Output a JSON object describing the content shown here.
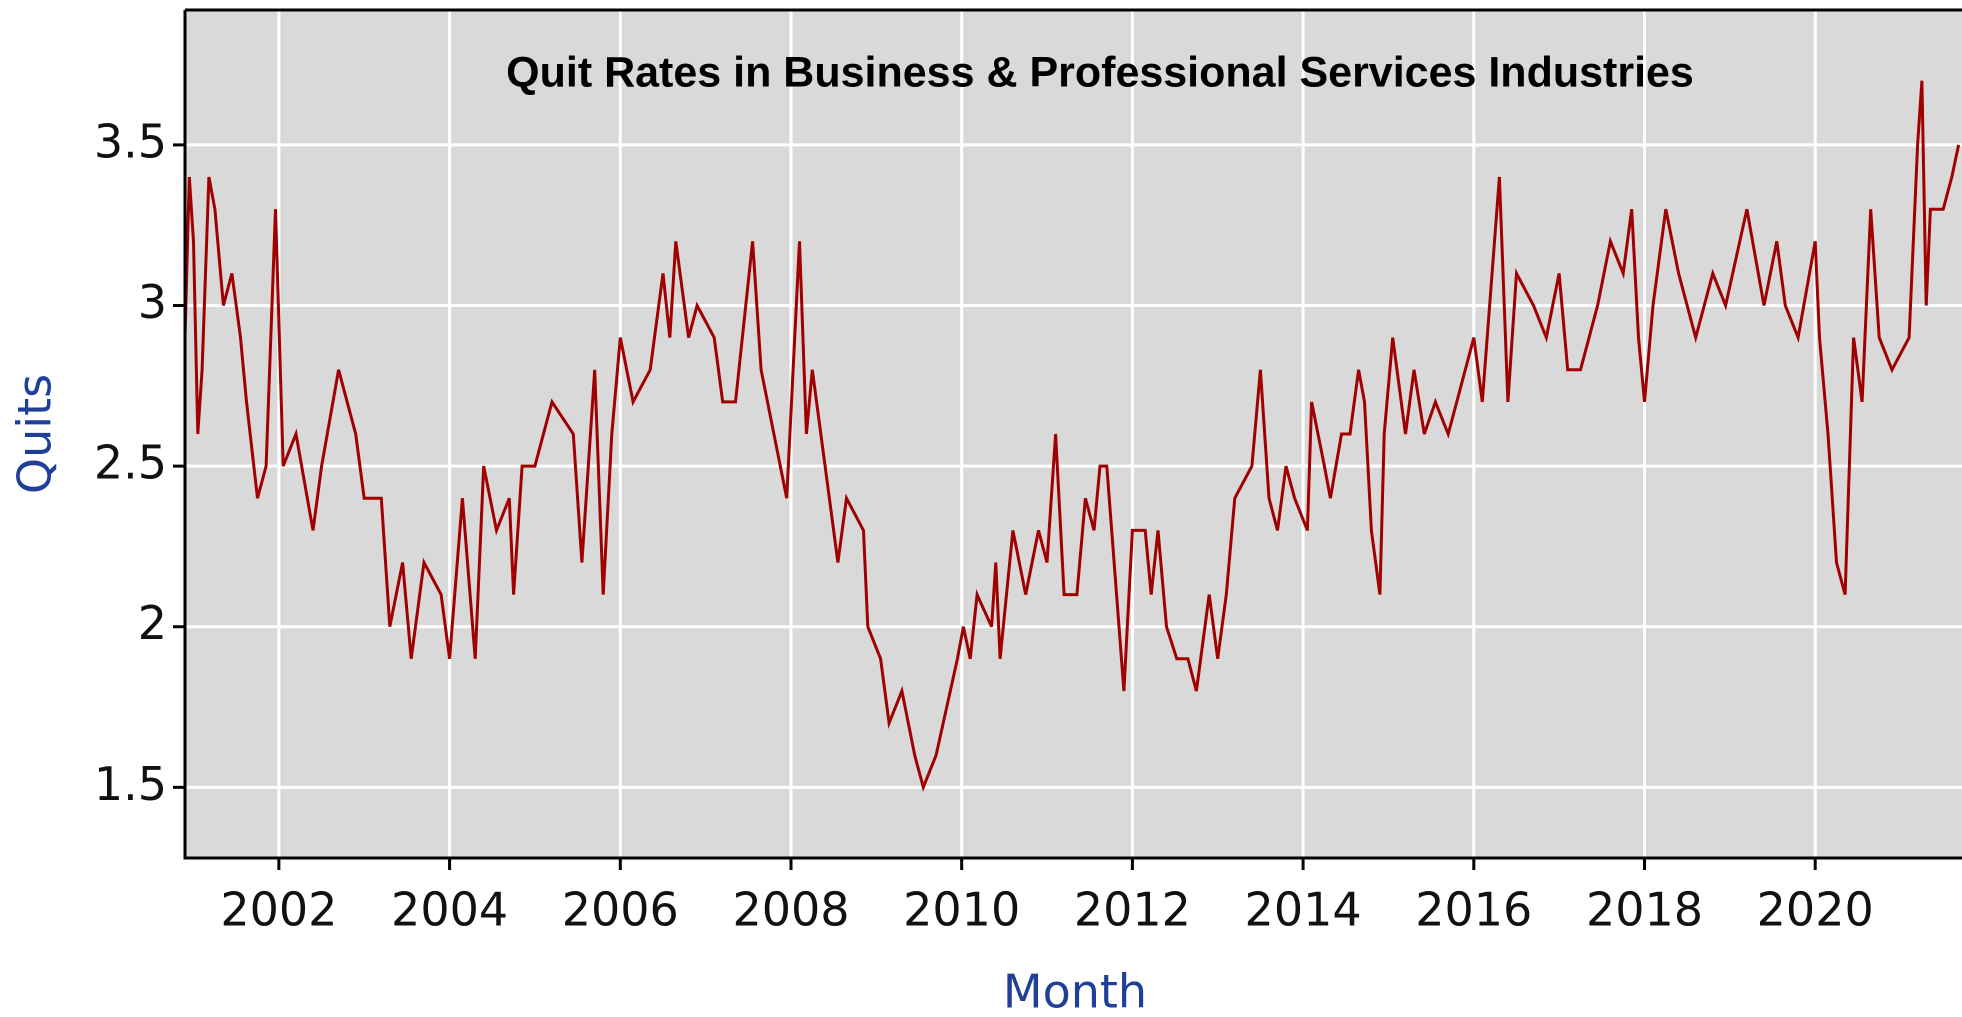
{
  "chart_data": {
    "type": "line",
    "title": "Quit Rates in Business & Professional Services Industries",
    "x_label": "Month",
    "y_label": "Quits",
    "xlim": [
      2000.9,
      2021.72
    ],
    "xticks": [
      2002,
      2004,
      2006,
      2008,
      2010,
      2012,
      2014,
      2016,
      2018,
      2020
    ],
    "ylim": [
      1.28,
      3.92
    ],
    "yticks": [
      1.5,
      2,
      2.5,
      3,
      3.5
    ],
    "grid": true,
    "series": [
      {
        "name": "Quits",
        "color": "#a00000",
        "x": [
          2000.9,
          2000.95,
          2001.0,
          2001.05,
          2001.1,
          2001.18,
          2001.25,
          2001.35,
          2001.45,
          2001.55,
          2001.62,
          2001.75,
          2001.85,
          2001.96,
          2002.05,
          2002.2,
          2002.4,
          2002.5,
          2002.7,
          2002.9,
          2003.0,
          2003.2,
          2003.3,
          2003.45,
          2003.55,
          2003.7,
          2003.9,
          2004.0,
          2004.15,
          2004.3,
          2004.4,
          2004.55,
          2004.7,
          2004.75,
          2004.85,
          2005.0,
          2005.2,
          2005.45,
          2005.55,
          2005.7,
          2005.8,
          2005.9,
          2006.0,
          2006.15,
          2006.35,
          2006.5,
          2006.58,
          2006.65,
          2006.8,
          2006.9,
          2007.1,
          2007.2,
          2007.35,
          2007.55,
          2007.65,
          2007.95,
          2008.1,
          2008.18,
          2008.25,
          2008.4,
          2008.55,
          2008.65,
          2008.85,
          2008.9,
          2009.05,
          2009.15,
          2009.3,
          2009.45,
          2009.55,
          2009.7,
          2009.95,
          2010.02,
          2010.1,
          2010.18,
          2010.35,
          2010.4,
          2010.45,
          2010.6,
          2010.75,
          2010.9,
          2011.0,
          2011.1,
          2011.2,
          2011.35,
          2011.45,
          2011.55,
          2011.62,
          2011.7,
          2011.9,
          2012.0,
          2012.15,
          2012.22,
          2012.3,
          2012.4,
          2012.52,
          2012.65,
          2012.75,
          2012.9,
          2013.0,
          2013.1,
          2013.2,
          2013.4,
          2013.5,
          2013.6,
          2013.7,
          2013.8,
          2013.9,
          2014.05,
          2014.1,
          2014.25,
          2014.32,
          2014.45,
          2014.55,
          2014.65,
          2014.72,
          2014.8,
          2014.9,
          2014.95,
          2015.05,
          2015.2,
          2015.3,
          2015.42,
          2015.55,
          2015.7,
          2015.9,
          2016.0,
          2016.1,
          2016.3,
          2016.4,
          2016.5,
          2016.7,
          2016.85,
          2017.0,
          2017.1,
          2017.25,
          2017.45,
          2017.6,
          2017.75,
          2017.85,
          2017.93,
          2018.0,
          2018.1,
          2018.25,
          2018.4,
          2018.6,
          2018.8,
          2018.95,
          2019.2,
          2019.4,
          2019.55,
          2019.65,
          2019.8,
          2020.0,
          2020.05,
          2020.15,
          2020.25,
          2020.35,
          2020.45,
          2020.55,
          2020.65,
          2020.75,
          2020.9,
          2021.1,
          2021.2,
          2021.25,
          2021.3,
          2021.35,
          2021.5,
          2021.6,
          2021.68
        ],
        "values": [
          2.9,
          3.4,
          3.2,
          2.6,
          2.8,
          3.4,
          3.3,
          3.0,
          3.1,
          2.9,
          2.7,
          2.4,
          2.5,
          3.3,
          2.5,
          2.6,
          2.3,
          2.5,
          2.8,
          2.6,
          2.4,
          2.4,
          2.0,
          2.2,
          1.9,
          2.2,
          2.1,
          1.9,
          2.4,
          1.9,
          2.5,
          2.3,
          2.4,
          2.1,
          2.5,
          2.5,
          2.7,
          2.6,
          2.2,
          2.8,
          2.1,
          2.6,
          2.9,
          2.7,
          2.8,
          3.1,
          2.9,
          3.2,
          2.9,
          3.0,
          2.9,
          2.7,
          2.7,
          3.2,
          2.8,
          2.4,
          3.2,
          2.6,
          2.8,
          2.5,
          2.2,
          2.4,
          2.3,
          2.0,
          1.9,
          1.7,
          1.8,
          1.6,
          1.5,
          1.6,
          1.9,
          2.0,
          1.9,
          2.1,
          2.0,
          2.2,
          1.9,
          2.3,
          2.1,
          2.3,
          2.2,
          2.6,
          2.1,
          2.1,
          2.4,
          2.3,
          2.5,
          2.5,
          1.8,
          2.3,
          2.3,
          2.1,
          2.3,
          2.0,
          1.9,
          1.9,
          1.8,
          2.1,
          1.9,
          2.1,
          2.4,
          2.5,
          2.8,
          2.4,
          2.3,
          2.5,
          2.4,
          2.3,
          2.7,
          2.5,
          2.4,
          2.6,
          2.6,
          2.8,
          2.7,
          2.3,
          2.1,
          2.6,
          2.9,
          2.6,
          2.8,
          2.6,
          2.7,
          2.6,
          2.8,
          2.9,
          2.7,
          3.4,
          2.7,
          3.1,
          3.0,
          2.9,
          3.1,
          2.8,
          2.8,
          3.0,
          3.2,
          3.1,
          3.3,
          2.9,
          2.7,
          3.0,
          3.3,
          3.1,
          2.9,
          3.1,
          3.0,
          3.3,
          3.0,
          3.2,
          3.0,
          2.9,
          3.2,
          2.9,
          2.6,
          2.2,
          2.1,
          2.9,
          2.7,
          3.3,
          2.9,
          2.8,
          2.9,
          3.5,
          3.7,
          3.0,
          3.3,
          3.3,
          3.4,
          3.5
        ]
      }
    ]
  }
}
